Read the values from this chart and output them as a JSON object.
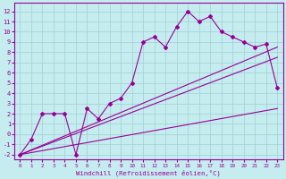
{
  "xlabel": "Windchill (Refroidissement éolien,°C)",
  "bg_color": "#c5ecee",
  "grid_color": "#a0d0d4",
  "line_color": "#990099",
  "x_ticks": [
    0,
    1,
    2,
    3,
    4,
    5,
    6,
    7,
    8,
    9,
    10,
    11,
    12,
    13,
    14,
    15,
    16,
    17,
    18,
    19,
    20,
    21,
    22,
    23
  ],
  "y_ticks": [
    -2,
    -1,
    0,
    1,
    2,
    3,
    4,
    5,
    6,
    7,
    8,
    9,
    10,
    11,
    12
  ],
  "ylim": [
    -2.5,
    12.8
  ],
  "xlim": [
    -0.5,
    23.5
  ],
  "scatter_x": [
    0,
    1,
    2,
    3,
    4,
    5,
    6,
    7,
    8,
    9,
    10,
    11,
    12,
    13,
    14,
    15,
    16,
    17,
    18,
    19,
    20,
    21,
    22,
    23
  ],
  "scatter_y": [
    -2,
    -0.5,
    2.0,
    2.0,
    2.0,
    -2.0,
    2.5,
    1.5,
    3.0,
    3.5,
    5.0,
    9.0,
    9.5,
    8.5,
    10.5,
    12.0,
    11.0,
    11.5,
    10.0,
    9.5,
    9.0,
    8.5,
    8.8,
    4.5
  ],
  "line1_x": [
    0,
    23
  ],
  "line1_y": [
    -2,
    2.5
  ],
  "line2_x": [
    0,
    23
  ],
  "line2_y": [
    -2,
    7.5
  ],
  "line3_x": [
    0,
    23
  ],
  "line3_y": [
    -2,
    8.5
  ]
}
